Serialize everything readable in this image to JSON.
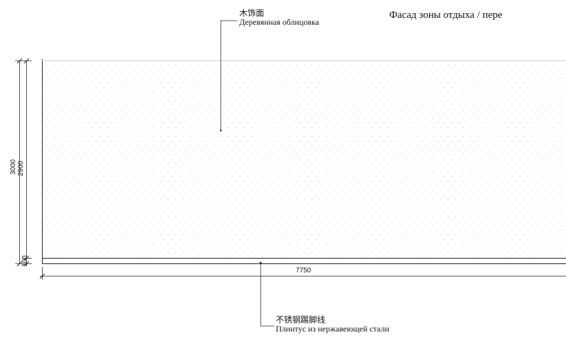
{
  "title": "Фасад зоны отдыха / пере",
  "callout_top": {
    "zh": "木饰面",
    "ru": "Деревянная облицовка"
  },
  "callout_bottom": {
    "zh": "不锈钢踢脚线",
    "ru": "Плинтус из нержавеющей стали"
  },
  "dimensions": {
    "total_height": "3000",
    "panel_height": "2900",
    "skirting_height": "100",
    "width": "7750"
  },
  "colors": {
    "line": "#222222",
    "dots": "#b8b8b8"
  }
}
